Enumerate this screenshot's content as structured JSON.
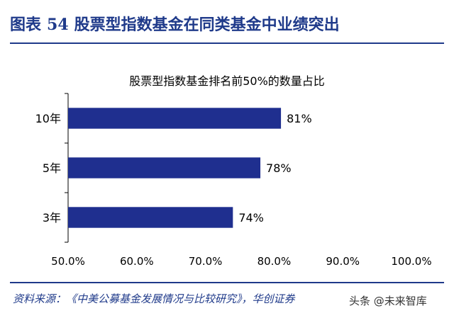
{
  "figure": {
    "label": "图表",
    "number": "54",
    "title": "股票型指数基金在同类基金中业绩突出"
  },
  "source": "资料来源：《中美公募基金发展情况与比较研究》，华创证券",
  "watermark": "头条 @未来智库",
  "colors": {
    "bar": "#1f2f8f",
    "accent": "#1f3a8a",
    "text": "#000000"
  },
  "chart_data": {
    "type": "bar",
    "orientation": "horizontal",
    "title": "股票型指数基金排名前50%的数量占比",
    "categories": [
      "10年",
      "5年",
      "3年"
    ],
    "values": [
      81,
      78,
      74
    ],
    "value_labels": [
      "81%",
      "78%",
      "74%"
    ],
    "xlim": [
      50,
      100
    ],
    "xticks": [
      "50.0%",
      "60.0%",
      "70.0%",
      "80.0%",
      "90.0%",
      "100.0%"
    ],
    "xlabel": "",
    "ylabel": "",
    "grid": false,
    "legend": false
  }
}
